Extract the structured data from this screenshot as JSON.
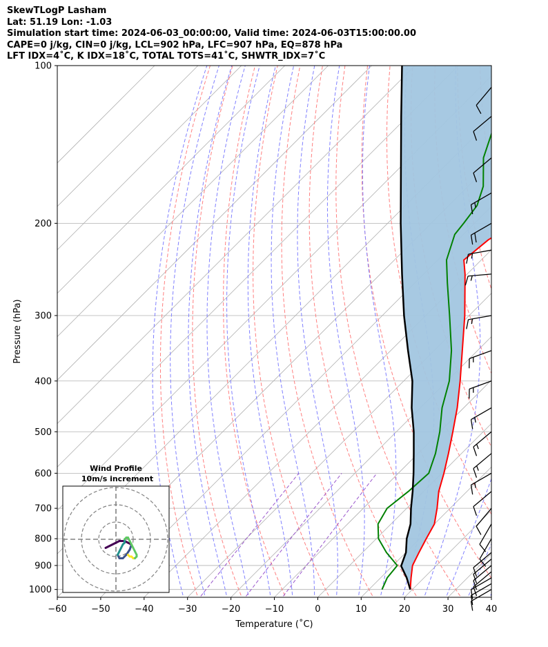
{
  "header": {
    "lines": [
      "SkewTLogP Lasham",
      "Lat: 51.19   Lon: -1.03",
      "Simulation start time: 2024-06-03_00:00:00, Valid time: 2024-06-03T15:00:00.00",
      "CAPE=0 j/kg, CIN=0 j/kg, LCL=902 hPa, LFC=907 hPa, EQ=878 hPa",
      "LFT IDX=4˚C, K IDX=18˚C, TOTAL TOTS=41˚C, SHWTR_IDX=7˚C"
    ]
  },
  "chart_data": {
    "type": "skewt",
    "xlabel": "Temperature (˚C)",
    "ylabel": "Pressure (hPa)",
    "xlim": [
      -60,
      40
    ],
    "ylim": [
      1035,
      100
    ],
    "x_ticks": [
      -60,
      -50,
      -40,
      -30,
      -20,
      -10,
      0,
      10,
      20,
      30,
      40
    ],
    "x_tick_labels": [
      "−60",
      "−50",
      "−40",
      "−30",
      "−20",
      "−10",
      "0",
      "10",
      "20",
      "30",
      "40"
    ],
    "y_ticks": [
      1000,
      900,
      800,
      700,
      600,
      500,
      400,
      300,
      200,
      100
    ],
    "y_tick_labels": [
      "1000",
      "900",
      "800",
      "700",
      "600",
      "500",
      "400",
      "300",
      "200",
      "100"
    ],
    "grid": true,
    "colors": {
      "temperature": "#ff0000",
      "dewpoint": "#008000",
      "parcel": "#000000",
      "shade": "#a2c6e0",
      "dry_adiabat": "#ff7f7f",
      "moist_adiabat": "#7f7fff",
      "mixing_ratio": "#9955cc",
      "isotherm": "#b0b0b0"
    },
    "temperature": [
      {
        "p": 1000,
        "t": 19.5
      },
      {
        "p": 950,
        "t": 17.0
      },
      {
        "p": 900,
        "t": 14.5
      },
      {
        "p": 850,
        "t": 13.0
      },
      {
        "p": 800,
        "t": 11.5
      },
      {
        "p": 750,
        "t": 10.0
      },
      {
        "p": 700,
        "t": 7.0
      },
      {
        "p": 650,
        "t": 3.5
      },
      {
        "p": 600,
        "t": 0.5
      },
      {
        "p": 550,
        "t": -3.0
      },
      {
        "p": 500,
        "t": -7.0
      },
      {
        "p": 450,
        "t": -11.5
      },
      {
        "p": 400,
        "t": -17.0
      },
      {
        "p": 350,
        "t": -23.5
      },
      {
        "p": 300,
        "t": -31.0
      },
      {
        "p": 250,
        "t": -40.5
      },
      {
        "p": 235,
        "t": -44.0
      },
      {
        "p": 215,
        "t": -43.0
      },
      {
        "p": 200,
        "t": -40.5
      },
      {
        "p": 180,
        "t": -34.0
      },
      {
        "p": 160,
        "t": -29.5
      },
      {
        "p": 140,
        "t": -26.5
      },
      {
        "p": 120,
        "t": -26.0
      },
      {
        "p": 110,
        "t": -26.5
      },
      {
        "p": 100,
        "t": -26.0
      }
    ],
    "dewpoint": [
      {
        "p": 1000,
        "t": 13.0
      },
      {
        "p": 950,
        "t": 11.5
      },
      {
        "p": 900,
        "t": 11.0
      },
      {
        "p": 850,
        "t": 5.5
      },
      {
        "p": 800,
        "t": 0.5
      },
      {
        "p": 750,
        "t": -3.0
      },
      {
        "p": 700,
        "t": -4.5
      },
      {
        "p": 650,
        "t": -3.5
      },
      {
        "p": 600,
        "t": -3.0
      },
      {
        "p": 550,
        "t": -6.0
      },
      {
        "p": 500,
        "t": -10.0
      },
      {
        "p": 450,
        "t": -15.0
      },
      {
        "p": 400,
        "t": -19.5
      },
      {
        "p": 350,
        "t": -26.0
      },
      {
        "p": 300,
        "t": -34.5
      },
      {
        "p": 260,
        "t": -42.5
      },
      {
        "p": 235,
        "t": -48.0
      },
      {
        "p": 210,
        "t": -52.0
      },
      {
        "p": 200,
        "t": -52.5
      },
      {
        "p": 185,
        "t": -53.5
      },
      {
        "p": 170,
        "t": -56.5
      },
      {
        "p": 150,
        "t": -63.0
      },
      {
        "p": 130,
        "t": -68.0
      },
      {
        "p": 115,
        "t": -68.5
      },
      {
        "p": 100,
        "t": -69.0
      }
    ],
    "parcel": [
      {
        "p": 1000,
        "t": 19.5
      },
      {
        "p": 950,
        "t": 16.0
      },
      {
        "p": 902,
        "t": 12.0
      },
      {
        "p": 850,
        "t": 10.0
      },
      {
        "p": 800,
        "t": 7.0
      },
      {
        "p": 750,
        "t": 4.5
      },
      {
        "p": 700,
        "t": 1.0
      },
      {
        "p": 650,
        "t": -2.5
      },
      {
        "p": 600,
        "t": -6.5
      },
      {
        "p": 550,
        "t": -11.0
      },
      {
        "p": 500,
        "t": -16.0
      },
      {
        "p": 450,
        "t": -22.0
      },
      {
        "p": 400,
        "t": -28.0
      },
      {
        "p": 350,
        "t": -36.0
      },
      {
        "p": 300,
        "t": -45.0
      },
      {
        "p": 250,
        "t": -55.0
      },
      {
        "p": 200,
        "t": -67.0
      },
      {
        "p": 150,
        "t": -82.0
      },
      {
        "p": 125,
        "t": -91.5
      },
      {
        "p": 100,
        "t": -103.0
      }
    ],
    "wind_barbs": [
      {
        "p": 1000,
        "speed_kt": 10,
        "dir": 300
      },
      {
        "p": 975,
        "speed_kt": 10,
        "dir": 300
      },
      {
        "p": 950,
        "speed_kt": 10,
        "dir": 300
      },
      {
        "p": 925,
        "speed_kt": 10,
        "dir": 310
      },
      {
        "p": 900,
        "speed_kt": 10,
        "dir": 310
      },
      {
        "p": 875,
        "speed_kt": 10,
        "dir": 310
      },
      {
        "p": 850,
        "speed_kt": 10,
        "dir": 310
      },
      {
        "p": 800,
        "speed_kt": 10,
        "dir": 330
      },
      {
        "p": 750,
        "speed_kt": 10,
        "dir": 330
      },
      {
        "p": 700,
        "speed_kt": 10,
        "dir": 320
      },
      {
        "p": 650,
        "speed_kt": 10,
        "dir": 310
      },
      {
        "p": 600,
        "speed_kt": 15,
        "dir": 300
      },
      {
        "p": 550,
        "speed_kt": 15,
        "dir": 310
      },
      {
        "p": 500,
        "speed_kt": 15,
        "dir": 310
      },
      {
        "p": 450,
        "speed_kt": 15,
        "dir": 300
      },
      {
        "p": 400,
        "speed_kt": 15,
        "dir": 290
      },
      {
        "p": 350,
        "speed_kt": 15,
        "dir": 290
      },
      {
        "p": 300,
        "speed_kt": 15,
        "dir": 280
      },
      {
        "p": 250,
        "speed_kt": 15,
        "dir": 275
      },
      {
        "p": 225,
        "speed_kt": 15,
        "dir": 280
      },
      {
        "p": 200,
        "speed_kt": 20,
        "dir": 300
      },
      {
        "p": 175,
        "speed_kt": 15,
        "dir": 300
      },
      {
        "p": 150,
        "speed_kt": 10,
        "dir": 310
      },
      {
        "p": 125,
        "speed_kt": 10,
        "dir": 310
      },
      {
        "p": 110,
        "speed_kt": 10,
        "dir": 320
      }
    ],
    "hodograph": {
      "title": "Wind Profile",
      "subtitle": "10m/s increment",
      "rings_ms": [
        10,
        20,
        30
      ],
      "u": [
        -6,
        -2,
        2,
        5,
        7,
        9,
        8,
        6,
        4,
        2,
        1,
        2,
        3,
        4,
        5,
        5,
        6,
        7,
        8,
        9,
        10,
        11,
        12,
        12,
        11,
        10,
        9,
        8,
        7
      ],
      "v": [
        -5,
        -3,
        -1,
        -1,
        -2,
        -3,
        -6,
        -9,
        -11,
        -11,
        -9,
        -7,
        -5,
        -3,
        -2,
        0,
        1,
        1,
        -1,
        -3,
        -5,
        -7,
        -9,
        -10,
        -11,
        -11,
        -10,
        -10,
        -9
      ]
    }
  }
}
